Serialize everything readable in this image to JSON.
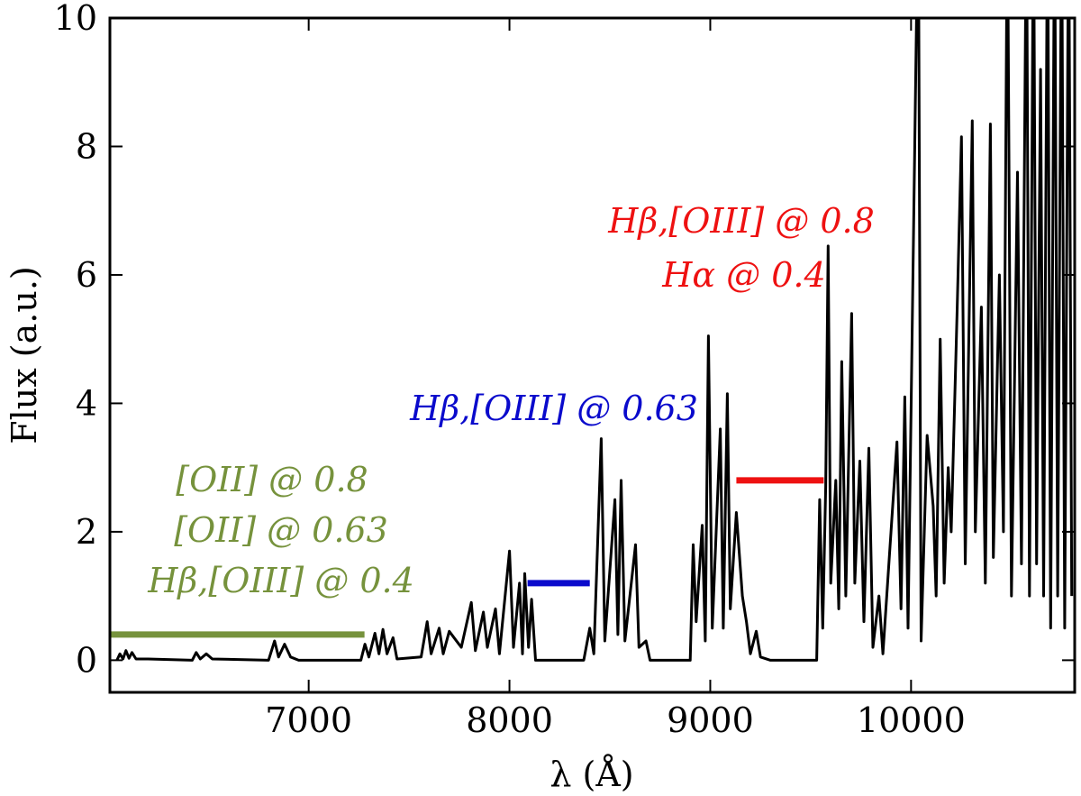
{
  "chart_data": {
    "type": "line",
    "xlabel": "λ (Å)",
    "ylabel": "Flux (a.u.)",
    "xlim": [
      6010,
      10815
    ],
    "ylim": [
      -0.5,
      10
    ],
    "xticks": [
      7000,
      8000,
      9000,
      10000
    ],
    "yticks": [
      0,
      2,
      4,
      6,
      8,
      10
    ],
    "series": [
      {
        "color": "#000000",
        "x": [
          6045,
          6060,
          6075,
          6090,
          6105,
          6120,
          6140,
          6200,
          6420,
          6440,
          6460,
          6490,
          6520,
          6800,
          6830,
          6850,
          6880,
          6910,
          6950,
          7260,
          7280,
          7300,
          7330,
          7350,
          7370,
          7390,
          7420,
          7440,
          7560,
          7590,
          7610,
          7650,
          7670,
          7700,
          7760,
          7810,
          7830,
          7870,
          7890,
          7930,
          7950,
          8000,
          8020,
          8050,
          8065,
          8076,
          8095,
          8110,
          8130,
          8370,
          8400,
          8420,
          8457,
          8475,
          8525,
          8540,
          8556,
          8575,
          8628,
          8645,
          8680,
          8700,
          8900,
          8915,
          8930,
          8960,
          8975,
          8991,
          9010,
          9050,
          9065,
          9085,
          9100,
          9130,
          9160,
          9180,
          9200,
          9229,
          9250,
          9300,
          9530,
          9545,
          9560,
          9575,
          9587,
          9600,
          9625,
          9640,
          9655,
          9675,
          9704,
          9720,
          9745,
          9765,
          9790,
          9810,
          9840,
          9860,
          9930,
          9950,
          9969,
          9985,
          10036,
          10050,
          10080,
          10110,
          10125,
          10145,
          10165,
          10185,
          10200,
          10230,
          10251,
          10270,
          10305,
          10320,
          10350,
          10370,
          10395,
          10410,
          10440,
          10460,
          10480,
          10500,
          10530,
          10550,
          10575,
          10590,
          10610,
          10625,
          10645,
          10660,
          10680,
          10695,
          10715,
          10730,
          10750,
          10765,
          10785,
          10800
        ],
        "values": [
          0,
          0.1,
          0.02,
          0.15,
          0.03,
          0.12,
          0.02,
          0.02,
          0,
          0.12,
          0.02,
          0.1,
          0.02,
          0,
          0.3,
          0.05,
          0.25,
          0.05,
          0,
          0,
          0.25,
          0.05,
          0.42,
          0.1,
          0.48,
          0.1,
          0.35,
          0.02,
          0.05,
          0.6,
          0.1,
          0.5,
          0.1,
          0.45,
          0.2,
          0.9,
          0.15,
          0.75,
          0.2,
          0.8,
          0.1,
          1.7,
          0.2,
          1.2,
          0.1,
          1.35,
          0.2,
          0.95,
          0,
          0,
          0.5,
          0.1,
          3.45,
          0.3,
          2.5,
          0.4,
          2.8,
          0.3,
          1.8,
          0.2,
          0.3,
          0,
          0,
          1.8,
          0.6,
          2.1,
          0.3,
          5.05,
          0.5,
          3.6,
          0.5,
          4.15,
          0.8,
          2.3,
          1.0,
          0.6,
          0.1,
          0.45,
          0.05,
          0,
          0,
          2.5,
          0.5,
          2.7,
          6.45,
          1.2,
          2.8,
          0.8,
          4.65,
          1.0,
          5.4,
          1.2,
          3.1,
          0.6,
          3.3,
          0.2,
          1.0,
          0.1,
          3.4,
          0.8,
          4.1,
          0.5,
          12,
          0.3,
          3.5,
          2.4,
          1.0,
          5.0,
          1.2,
          3.0,
          2.0,
          5.5,
          8.15,
          1.5,
          8.4,
          2.0,
          5.5,
          1.2,
          8.35,
          1.6,
          6.0,
          2.0,
          12,
          1.0,
          7.6,
          1.5,
          12,
          1.0,
          12,
          1.5,
          9.2,
          1.0,
          12,
          0.5,
          12,
          1.0,
          12,
          0.5,
          12,
          1.0
        ]
      }
    ],
    "ranges": [
      {
        "color": "#76923c",
        "x": [
          6010,
          7278
        ],
        "y": 0.4,
        "labels": [
          "[OII] @ 0.8",
          "[OII] @ 0.63",
          "Hβ,[OIII] @ 0.4"
        ]
      },
      {
        "color": "#0a0acc",
        "x": [
          8090,
          8400
        ],
        "y": 1.2,
        "labels": [
          "Hβ,[OIII] @ 0.63"
        ]
      },
      {
        "color": "#ee1111",
        "x": [
          9130,
          9565
        ],
        "y": 2.8,
        "labels": [
          "Hβ,[OIII] @ 0.8",
          "Hα @ 0.4"
        ]
      }
    ]
  }
}
